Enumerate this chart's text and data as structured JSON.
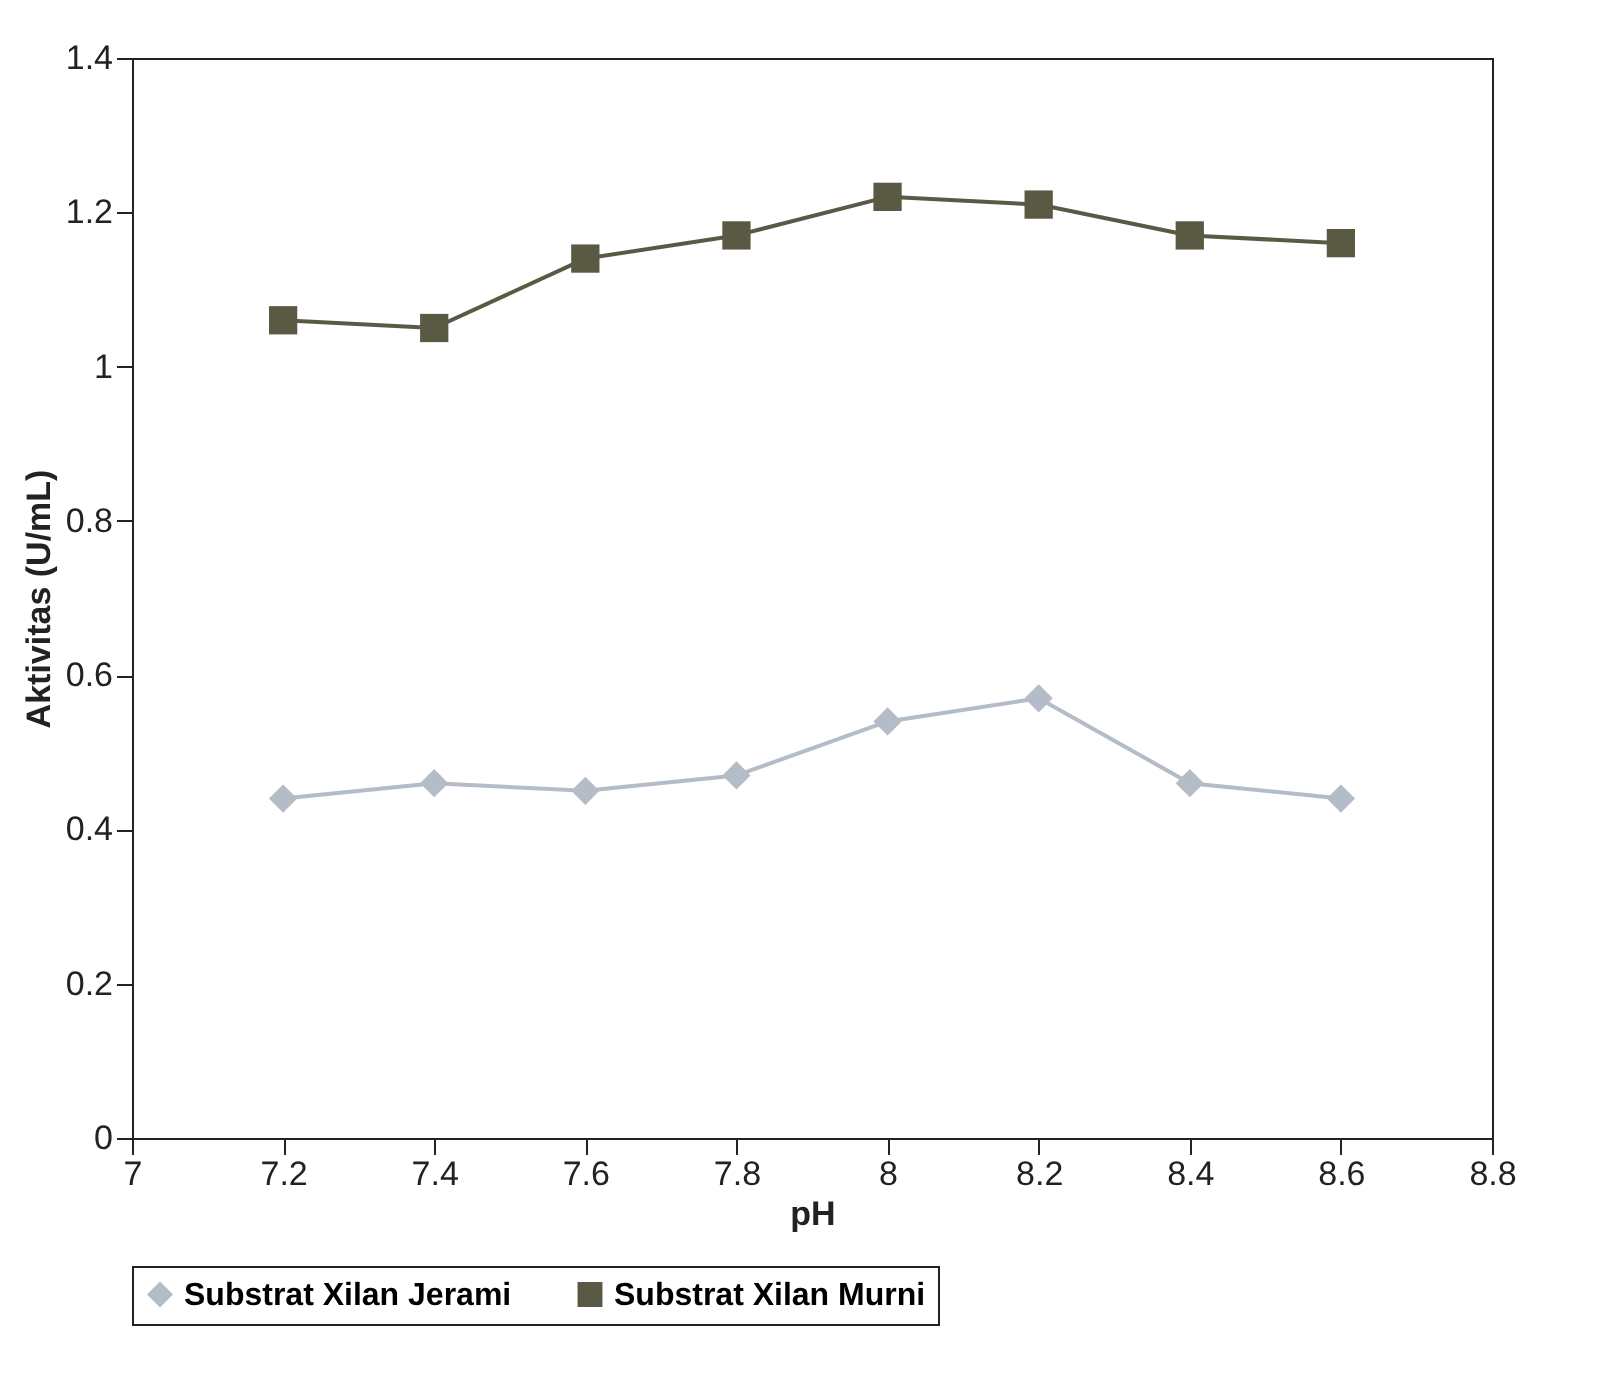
{
  "chart_data": {
    "type": "line",
    "xlabel": "pH",
    "ylabel": "Aktivitas (U/mL)",
    "x": [
      7.2,
      7.4,
      7.6,
      7.8,
      8,
      8.2,
      8.4,
      8.6
    ],
    "series": [
      {
        "name": "Substrat Xilan Jerami",
        "color": "#b4bcc8",
        "marker": "diamond",
        "values": [
          0.44,
          0.46,
          0.45,
          0.47,
          0.54,
          0.57,
          0.46,
          0.44
        ]
      },
      {
        "name": "Substrat Xilan Murni",
        "color": "#5a5a44",
        "marker": "square",
        "values": [
          1.06,
          1.05,
          1.14,
          1.17,
          1.22,
          1.21,
          1.17,
          1.16
        ]
      }
    ],
    "xlim": [
      7,
      8.8
    ],
    "xticks": [
      7,
      7.2,
      7.4,
      7.6,
      7.8,
      8,
      8.2,
      8.4,
      8.6,
      8.8
    ],
    "ylim": [
      0,
      1.4
    ],
    "yticks": [
      0,
      0.2,
      0.4,
      0.6,
      0.8,
      1,
      1.2,
      1.4
    ],
    "grid": false,
    "legend": "bottom",
    "line_style": "solid"
  }
}
